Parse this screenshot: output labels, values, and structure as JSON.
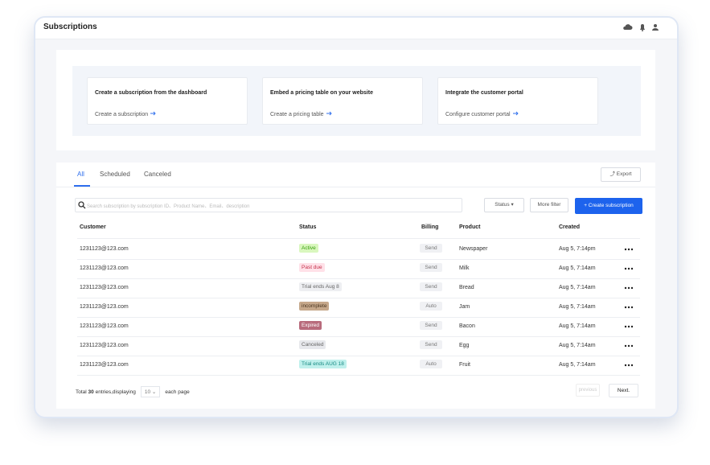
{
  "header": {
    "title": "Subscriptions"
  },
  "cards": [
    {
      "title": "Create a subscription from the dashboard",
      "link": "Create a subscription"
    },
    {
      "title": "Embed a pricing table on your website",
      "link": "Create a pricing table"
    },
    {
      "title": "Integrate the customer portal",
      "link": "Configure customer portal"
    }
  ],
  "tabs": [
    "All",
    "Scheduled",
    "Canceled"
  ],
  "export": "Export",
  "search": {
    "placeholder": "Search subscription by subscription ID、Product Name、Email、description"
  },
  "filters": {
    "status": "Status",
    "more": "More filter",
    "create": "Create subscription"
  },
  "table": {
    "columns": [
      "Customer",
      "Status",
      "Billing",
      "Product",
      "Created"
    ],
    "rows": [
      [
        "1231123@123.com",
        "Active",
        "Send",
        "Newspaper",
        "Aug 5, 7:14pm"
      ],
      [
        "1231123@123.com",
        "Past due",
        "Send",
        "Milk",
        "Aug 5, 7:14am"
      ],
      [
        "1231123@123.com",
        "Trial ends Aug 8",
        "Send",
        "Bread",
        "Aug 5, 7:14am"
      ],
      [
        "1231123@123.com",
        "incomplete",
        "Auto",
        "Jam",
        "Aug 5, 7:14am"
      ],
      [
        "1231123@123.com",
        "Expired",
        "Send",
        "Bacon",
        "Aug 5, 7:14am"
      ],
      [
        "1231123@123.com",
        "Canceled",
        "Send",
        "Egg",
        "Aug 5, 7:14am"
      ],
      [
        "1231123@123.com",
        "Trial ends AUG 18",
        "Auto",
        "Fruit",
        "Aug 5, 7:14am"
      ]
    ]
  },
  "footer": {
    "prefix": "Total",
    "total": 30,
    "middle": "entries,displaying",
    "page_size": 10,
    "suffix": "each page",
    "previous": "previous",
    "next": "Next."
  }
}
